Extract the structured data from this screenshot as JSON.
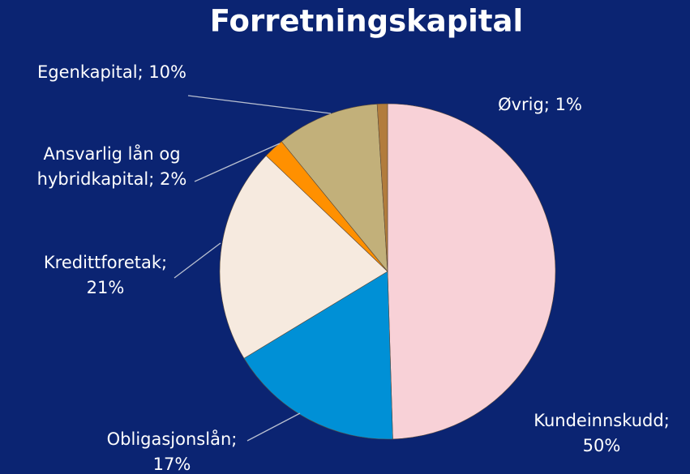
{
  "chart_data": {
    "type": "pie",
    "title": "Forretningskapital",
    "values": [
      50,
      17,
      21,
      2,
      10,
      1
    ],
    "value_labels": [
      [
        "Kundeinnskudd;",
        "50%"
      ],
      [
        "Obligasjonslån;",
        "17%"
      ],
      [
        "Kredittforetak;",
        "21%"
      ],
      [
        "Ansvarlig lån og",
        "hybridkapital; 2%"
      ],
      [
        "Egenkapital; 10%"
      ],
      [
        "Øvrig; 1%"
      ]
    ],
    "colors": [
      "#f8d1d7",
      "#0090d6",
      "#f6eadf",
      "#ff9000",
      "#c2b07a",
      "#b27c3c"
    ]
  }
}
